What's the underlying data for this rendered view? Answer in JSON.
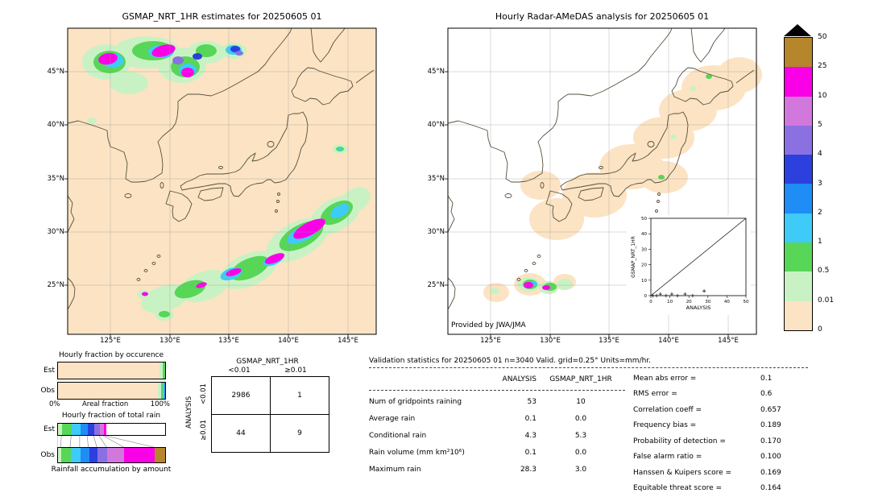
{
  "left_map": {
    "title": "GSMAP_NRT_1HR estimates for 20250605 01",
    "lat_ticks": [
      "45°N",
      "40°N",
      "35°N",
      "30°N",
      "25°N"
    ],
    "lon_ticks": [
      "125°E",
      "130°E",
      "135°E",
      "140°E",
      "145°E"
    ]
  },
  "right_map": {
    "title": "Hourly Radar-AMeDAS analysis for 20250605 01",
    "credit": "Provided by JWA/JMA",
    "lat_ticks": [
      "45°N",
      "40°N",
      "35°N",
      "30°N",
      "25°N"
    ],
    "lon_ticks": [
      "125°E",
      "130°E",
      "135°E",
      "140°E",
      "145°E"
    ],
    "inset": {
      "ylabel": "GSMAP_NRT_1HR",
      "xlabel": "ANALYSIS"
    }
  },
  "colorbar": {
    "labels": [
      "50",
      "25",
      "10",
      "5",
      "4",
      "3",
      "2",
      "1",
      "0.5",
      "0.01",
      "0"
    ]
  },
  "bottom_left": {
    "occurrence_title": "Hourly fraction by occurence",
    "row_label_est": "Est",
    "row_label_obs": "Obs",
    "areal_axis_left": "0%",
    "areal_axis_label": "Areal fraction",
    "areal_axis_right": "100%",
    "total_rain_title": "Hourly fraction of total rain",
    "accum_label": "Rainfall accumulation by amount"
  },
  "contingency_panel": {
    "col_group": "GSMAP_NRT_1HR",
    "row_group": "ANALYSIS",
    "col_labels": [
      "<0.01",
      "≥0.01"
    ],
    "row_labels": [
      "<0.01",
      "≥0.01"
    ]
  },
  "validation_panel": {
    "title": "Validation statistics for 20250605 01  n=3040 Valid. grid=0.25° Units=mm/hr.",
    "col_headers": [
      "ANALYSIS",
      "GSMAP_NRT_1HR"
    ]
  },
  "chart_data": {
    "maps": {
      "type": "heatmap",
      "units": "mm/hr",
      "extent": {
        "lon": [
          121,
          148
        ],
        "lat": [
          20,
          49
        ]
      },
      "panels": [
        "GSMAP_NRT_1HR estimates for 20250605 01",
        "Hourly Radar-AMeDAS analysis for 20250605 01"
      ]
    },
    "colorbar": {
      "type": "colorbar",
      "boundaries": [
        0,
        0.01,
        0.5,
        1,
        2,
        3,
        4,
        5,
        10,
        25,
        50
      ],
      "colors_top_to_bottom": [
        "#b5862c",
        "#fa00e6",
        "#d277dc",
        "#8a70e0",
        "#2b40dd",
        "#1f8df5",
        "#3ecbf8",
        "#57d657",
        "#c9f2c4",
        "#fce3c3"
      ],
      "units": "mm/hr"
    },
    "occurrence_bars": {
      "type": "bar",
      "x_range_pct": [
        0,
        100
      ],
      "rows": [
        {
          "label": "Est",
          "segments": [
            {
              "color": "#fce3c3",
              "pct": 95.0
            },
            {
              "color": "#c9f2c4",
              "pct": 3.0
            },
            {
              "color": "#57d657",
              "pct": 2.0
            }
          ]
        },
        {
          "label": "Obs",
          "segments": [
            {
              "color": "#fce3c3",
              "pct": 93.0
            },
            {
              "color": "#c9f2c4",
              "pct": 3.0
            },
            {
              "color": "#57d657",
              "pct": 2.0
            },
            {
              "color": "#3ecbf8",
              "pct": 1.0
            },
            {
              "color": "#1f8df5",
              "pct": 1.0
            }
          ]
        }
      ]
    },
    "total_rain_bars": {
      "type": "bar",
      "x_range_pct": [
        0,
        100
      ],
      "rows": [
        {
          "label": "Est",
          "segments": [
            {
              "color": "#c9f2c4",
              "pct": 4
            },
            {
              "color": "#57d657",
              "pct": 9
            },
            {
              "color": "#3ecbf8",
              "pct": 8
            },
            {
              "color": "#1f8df5",
              "pct": 7
            },
            {
              "color": "#2b40dd",
              "pct": 6
            },
            {
              "color": "#8a70e0",
              "pct": 5
            },
            {
              "color": "#d277dc",
              "pct": 4
            },
            {
              "color": "#fa00e6",
              "pct": 2
            }
          ]
        },
        {
          "label": "Obs",
          "segments": [
            {
              "color": "#c9f2c4",
              "pct": 3
            },
            {
              "color": "#57d657",
              "pct": 9
            },
            {
              "color": "#3ecbf8",
              "pct": 9
            },
            {
              "color": "#1f8df5",
              "pct": 8
            },
            {
              "color": "#2b40dd",
              "pct": 8
            },
            {
              "color": "#8a70e0",
              "pct": 9
            },
            {
              "color": "#d277dc",
              "pct": 16
            },
            {
              "color": "#fa00e6",
              "pct": 28
            },
            {
              "color": "#b5862c",
              "pct": 10
            }
          ]
        }
      ]
    },
    "inset_scatter": {
      "type": "scatter",
      "xlabel": "ANALYSIS",
      "ylabel": "GSMAP_NRT_1HR",
      "xlim": [
        0,
        50
      ],
      "ylim": [
        0,
        50
      ],
      "ticks": [
        0,
        10,
        20,
        30,
        40,
        50
      ],
      "diagonal": true,
      "points": [
        [
          1,
          0
        ],
        [
          3,
          0
        ],
        [
          5,
          1
        ],
        [
          8,
          0
        ],
        [
          11,
          1
        ],
        [
          14,
          0
        ],
        [
          18,
          1
        ],
        [
          22,
          0
        ],
        [
          28,
          3
        ]
      ]
    },
    "contingency_table": {
      "type": "table",
      "col_group": "GSMAP_NRT_1HR",
      "row_group": "ANALYSIS",
      "col_labels": [
        "<0.01",
        "≥0.01"
      ],
      "row_labels": [
        "<0.01",
        "≥0.01"
      ],
      "values": [
        [
          2986,
          1
        ],
        [
          44,
          9
        ]
      ]
    },
    "validation_rows": [
      {
        "label": "Num of gridpoints raining",
        "analysis": "53",
        "gsmap": "10"
      },
      {
        "label": "Average rain",
        "analysis": "0.1",
        "gsmap": "0.0"
      },
      {
        "label": "Conditional rain",
        "analysis": "4.3",
        "gsmap": "5.3"
      },
      {
        "label": "Rain volume (mm km²10⁶)",
        "analysis": "0.1",
        "gsmap": "0.0"
      },
      {
        "label": "Maximum rain",
        "analysis": "28.3",
        "gsmap": "3.0"
      }
    ],
    "validation_scores": [
      {
        "label": "Mean abs error =",
        "value": "0.1"
      },
      {
        "label": "RMS error =",
        "value": "0.6"
      },
      {
        "label": "Correlation coeff =",
        "value": "0.657"
      },
      {
        "label": "Frequency bias =",
        "value": "0.189"
      },
      {
        "label": "Probability of detection =",
        "value": "0.170"
      },
      {
        "label": "False alarm ratio =",
        "value": "0.100"
      },
      {
        "label": "Hanssen & Kuipers score =",
        "value": "0.169"
      },
      {
        "label": "Equitable threat score =",
        "value": "0.164"
      }
    ]
  }
}
